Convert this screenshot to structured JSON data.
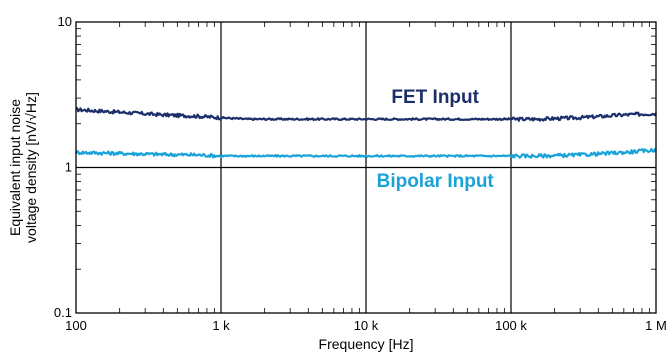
{
  "chart_data": {
    "type": "line",
    "xscale": "log",
    "yscale": "log",
    "xlim": [
      100,
      1000000
    ],
    "ylim": [
      0.1,
      10
    ],
    "xlabel": "Frequency [Hz]",
    "ylabel_lines": [
      "Equivalent input noise",
      "voltage density [nV/√Hz]"
    ],
    "xticks": [
      100,
      1000,
      10000,
      100000,
      1000000
    ],
    "xtick_labels": [
      "100",
      "1 k",
      "10 k",
      "100 k",
      "1 M"
    ],
    "yticks": [
      0.1,
      1,
      10
    ],
    "ytick_labels": [
      "0.1",
      "1",
      "10"
    ],
    "grid": true,
    "series": [
      {
        "name": "FET Input",
        "color": "#1c2f6b",
        "x": [
          100,
          200,
          400,
          700,
          1000,
          1500,
          3000,
          6000,
          10000,
          20000,
          50000,
          100000,
          150000,
          300000,
          600000,
          1000000
        ],
        "y": [
          2.5,
          2.4,
          2.3,
          2.25,
          2.2,
          2.15,
          2.15,
          2.15,
          2.15,
          2.15,
          2.15,
          2.15,
          2.15,
          2.2,
          2.3,
          2.35
        ]
      },
      {
        "name": "Bipolar Input",
        "color": "#19a3d9",
        "x": [
          100,
          200,
          400,
          700,
          1000,
          1500,
          3000,
          6000,
          10000,
          20000,
          50000,
          100000,
          150000,
          300000,
          600000,
          1000000
        ],
        "y": [
          1.27,
          1.25,
          1.23,
          1.22,
          1.2,
          1.2,
          1.2,
          1.2,
          1.2,
          1.2,
          1.2,
          1.2,
          1.2,
          1.22,
          1.27,
          1.32
        ]
      }
    ],
    "annotations": [
      {
        "text": "FET Input",
        "x": 30000,
        "y": 3.1,
        "color": "#1c2f6b"
      },
      {
        "text": "Bipolar Input",
        "x": 30000,
        "y": 0.82,
        "color": "#19a3d9"
      }
    ]
  }
}
